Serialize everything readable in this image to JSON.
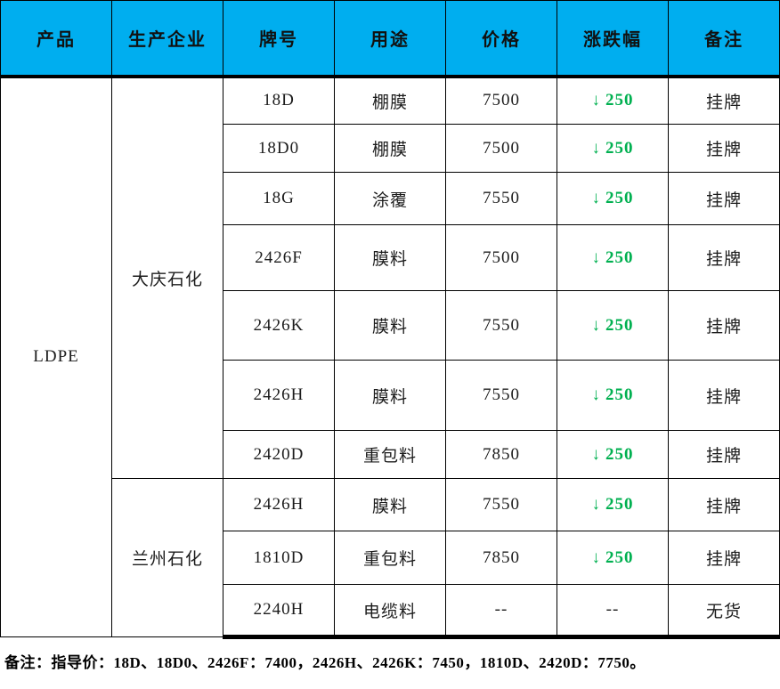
{
  "table": {
    "columns": [
      {
        "key": "product",
        "label": "产品"
      },
      {
        "key": "producer",
        "label": "生产企业"
      },
      {
        "key": "grade",
        "label": "牌号"
      },
      {
        "key": "use",
        "label": "用途"
      },
      {
        "key": "price",
        "label": "价格"
      },
      {
        "key": "change",
        "label": "涨跌幅"
      },
      {
        "key": "note",
        "label": "备注"
      }
    ],
    "groups": [
      {
        "product": "LDPE",
        "producers": [
          {
            "name": "大庆石化",
            "rows": [
              {
                "grade": "18D",
                "use": "棚膜",
                "price": "7500",
                "change": "250",
                "direction": "down",
                "note": "挂牌"
              },
              {
                "grade": "18D0",
                "use": "棚膜",
                "price": "7500",
                "change": "250",
                "direction": "down",
                "note": "挂牌"
              },
              {
                "grade": "18G",
                "use": "涂覆",
                "price": "7550",
                "change": "250",
                "direction": "down",
                "note": "挂牌"
              },
              {
                "grade": "2426F",
                "use": "膜料",
                "price": "7500",
                "change": "250",
                "direction": "down",
                "note": "挂牌"
              },
              {
                "grade": "2426K",
                "use": "膜料",
                "price": "7550",
                "change": "250",
                "direction": "down",
                "note": "挂牌"
              },
              {
                "grade": "2426H",
                "use": "膜料",
                "price": "7550",
                "change": "250",
                "direction": "down",
                "note": "挂牌"
              },
              {
                "grade": "2420D",
                "use": "重包料",
                "price": "7850",
                "change": "250",
                "direction": "down",
                "note": "挂牌"
              }
            ]
          },
          {
            "name": "兰州石化",
            "rows": [
              {
                "grade": "2426H",
                "use": "膜料",
                "price": "7550",
                "change": "250",
                "direction": "down",
                "note": "挂牌"
              },
              {
                "grade": "1810D",
                "use": "重包料",
                "price": "7850",
                "change": "250",
                "direction": "down",
                "note": "挂牌"
              },
              {
                "grade": "2240H",
                "use": "电缆料",
                "price": "--",
                "change": "--",
                "direction": "none",
                "note": "无货"
              }
            ]
          }
        ]
      }
    ]
  },
  "icons": {
    "down_arrow": "↓"
  },
  "colors": {
    "header_bg": "#00AEEF",
    "down_green": "#00B050",
    "border": "#000000"
  },
  "footer": {
    "note": "备注：指导价：18D、18D0、2426F：7400，2426H、2426K：7450，1810D、2420D：7750。"
  }
}
